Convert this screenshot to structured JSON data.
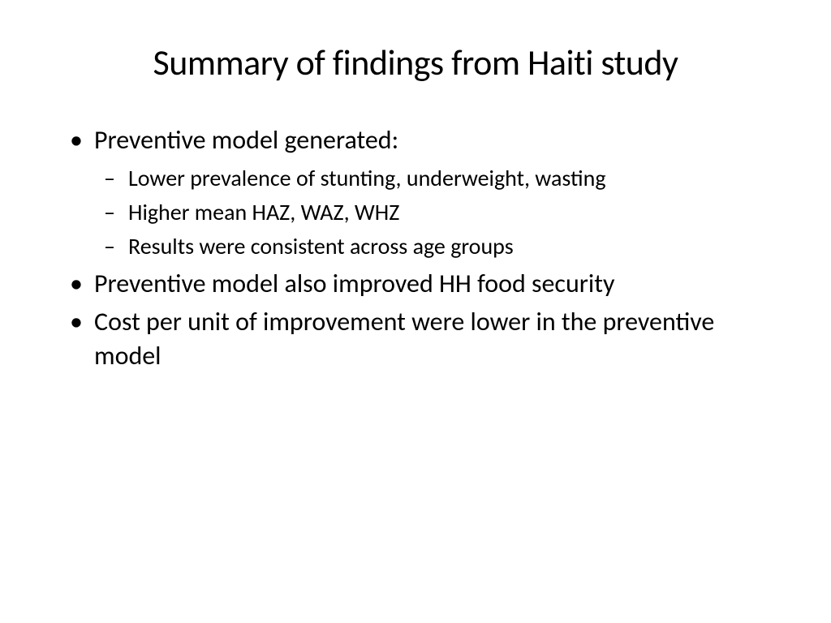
{
  "slide": {
    "title": "Summary of findings from Haiti study",
    "title_fontsize": 44,
    "title_color": "#000000",
    "background_color": "#ffffff",
    "text_color": "#000000",
    "font_family": "Calibri",
    "bullets": [
      {
        "text": "Preventive model generated:",
        "fontsize": 32,
        "sub": [
          {
            "text": "Lower prevalence of stunting, underweight, wasting",
            "fontsize": 28
          },
          {
            "text": "Higher mean HAZ, WAZ, WHZ",
            "fontsize": 28
          },
          {
            "text": "Results were consistent across age groups",
            "fontsize": 28
          }
        ]
      },
      {
        "text": "Preventive model also improved HH food security",
        "fontsize": 32,
        "sub": []
      },
      {
        "text": "Cost per unit of improvement were lower in the preventive model",
        "fontsize": 32,
        "sub": []
      }
    ]
  }
}
